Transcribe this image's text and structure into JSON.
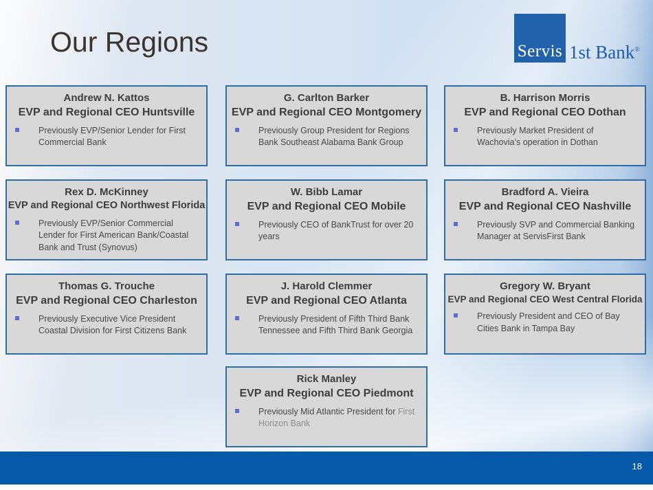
{
  "slide": {
    "title": "Our Regions",
    "page_number": "18",
    "logo": {
      "square_text": "Servis",
      "right_text": "1st Bank",
      "registered": "®"
    },
    "colors": {
      "footer_blue": "#0659a9",
      "logo_blue": "#2262ab",
      "box_background": "#d8d8d8",
      "box_border": "#2e6da4",
      "bullet_square": "#5f6ec6",
      "heading_text": "#3d3d3d",
      "body_text": "#474747",
      "muted_text": "#8c8c8c",
      "background_blue": "#c7daee"
    },
    "boxes": [
      {
        "name": "Andrew N. Kattos",
        "role": "EVP and Regional CEO Huntsville",
        "bullet": "Previously EVP/Senior Lender for First Commercial Bank",
        "bullet_muted": ""
      },
      {
        "name": "G. Carlton Barker",
        "role": "EVP and Regional CEO Montgomery",
        "bullet": "Previously Group President for Regions Bank Southeast Alabama Bank Group",
        "bullet_muted": ""
      },
      {
        "name": "B. Harrison Morris",
        "role": "EVP and Regional CEO Dothan",
        "bullet": "Previously Market President of Wachovia’s operation in Dothan",
        "bullet_muted": ""
      },
      {
        "name": "Rex D. McKinney",
        "role": "EVP and Regional CEO Northwest Florida",
        "bullet": "Previously EVP/Senior Commercial Lender for First American Bank/Coastal Bank and Trust (Synovus)",
        "bullet_muted": ""
      },
      {
        "name": "W. Bibb Lamar",
        "role": "EVP and Regional CEO Mobile",
        "bullet": "Previously CEO of BankTrust for over 20 years",
        "bullet_muted": ""
      },
      {
        "name": "Bradford A. Vieira",
        "role": "EVP and Regional CEO Nashville",
        "bullet": "Previously SVP and Commercial Banking Manager at ServisFirst Bank",
        "bullet_muted": ""
      },
      {
        "name": "Thomas G. Trouche",
        "role": "EVP and Regional CEO Charleston",
        "bullet": "Previously Executive Vice President Coastal Division for First Citizens Bank",
        "bullet_muted": ""
      },
      {
        "name": "J. Harold Clemmer",
        "role": "EVP and Regional CEO Atlanta",
        "bullet": "Previously President of Fifth Third Bank Tennessee and Fifth Third Bank Georgia",
        "bullet_muted": ""
      },
      {
        "name": "Gregory W. Bryant",
        "role": "EVP and Regional CEO West Central Florida",
        "bullet": "Previously President and CEO of Bay Cities Bank in Tampa Bay",
        "bullet_muted": ""
      },
      {
        "name": "Rick Manley",
        "role": "EVP and Regional CEO Piedmont",
        "bullet": "Previously Mid Atlantic President for ",
        "bullet_muted": "First Horizon Bank"
      }
    ]
  }
}
